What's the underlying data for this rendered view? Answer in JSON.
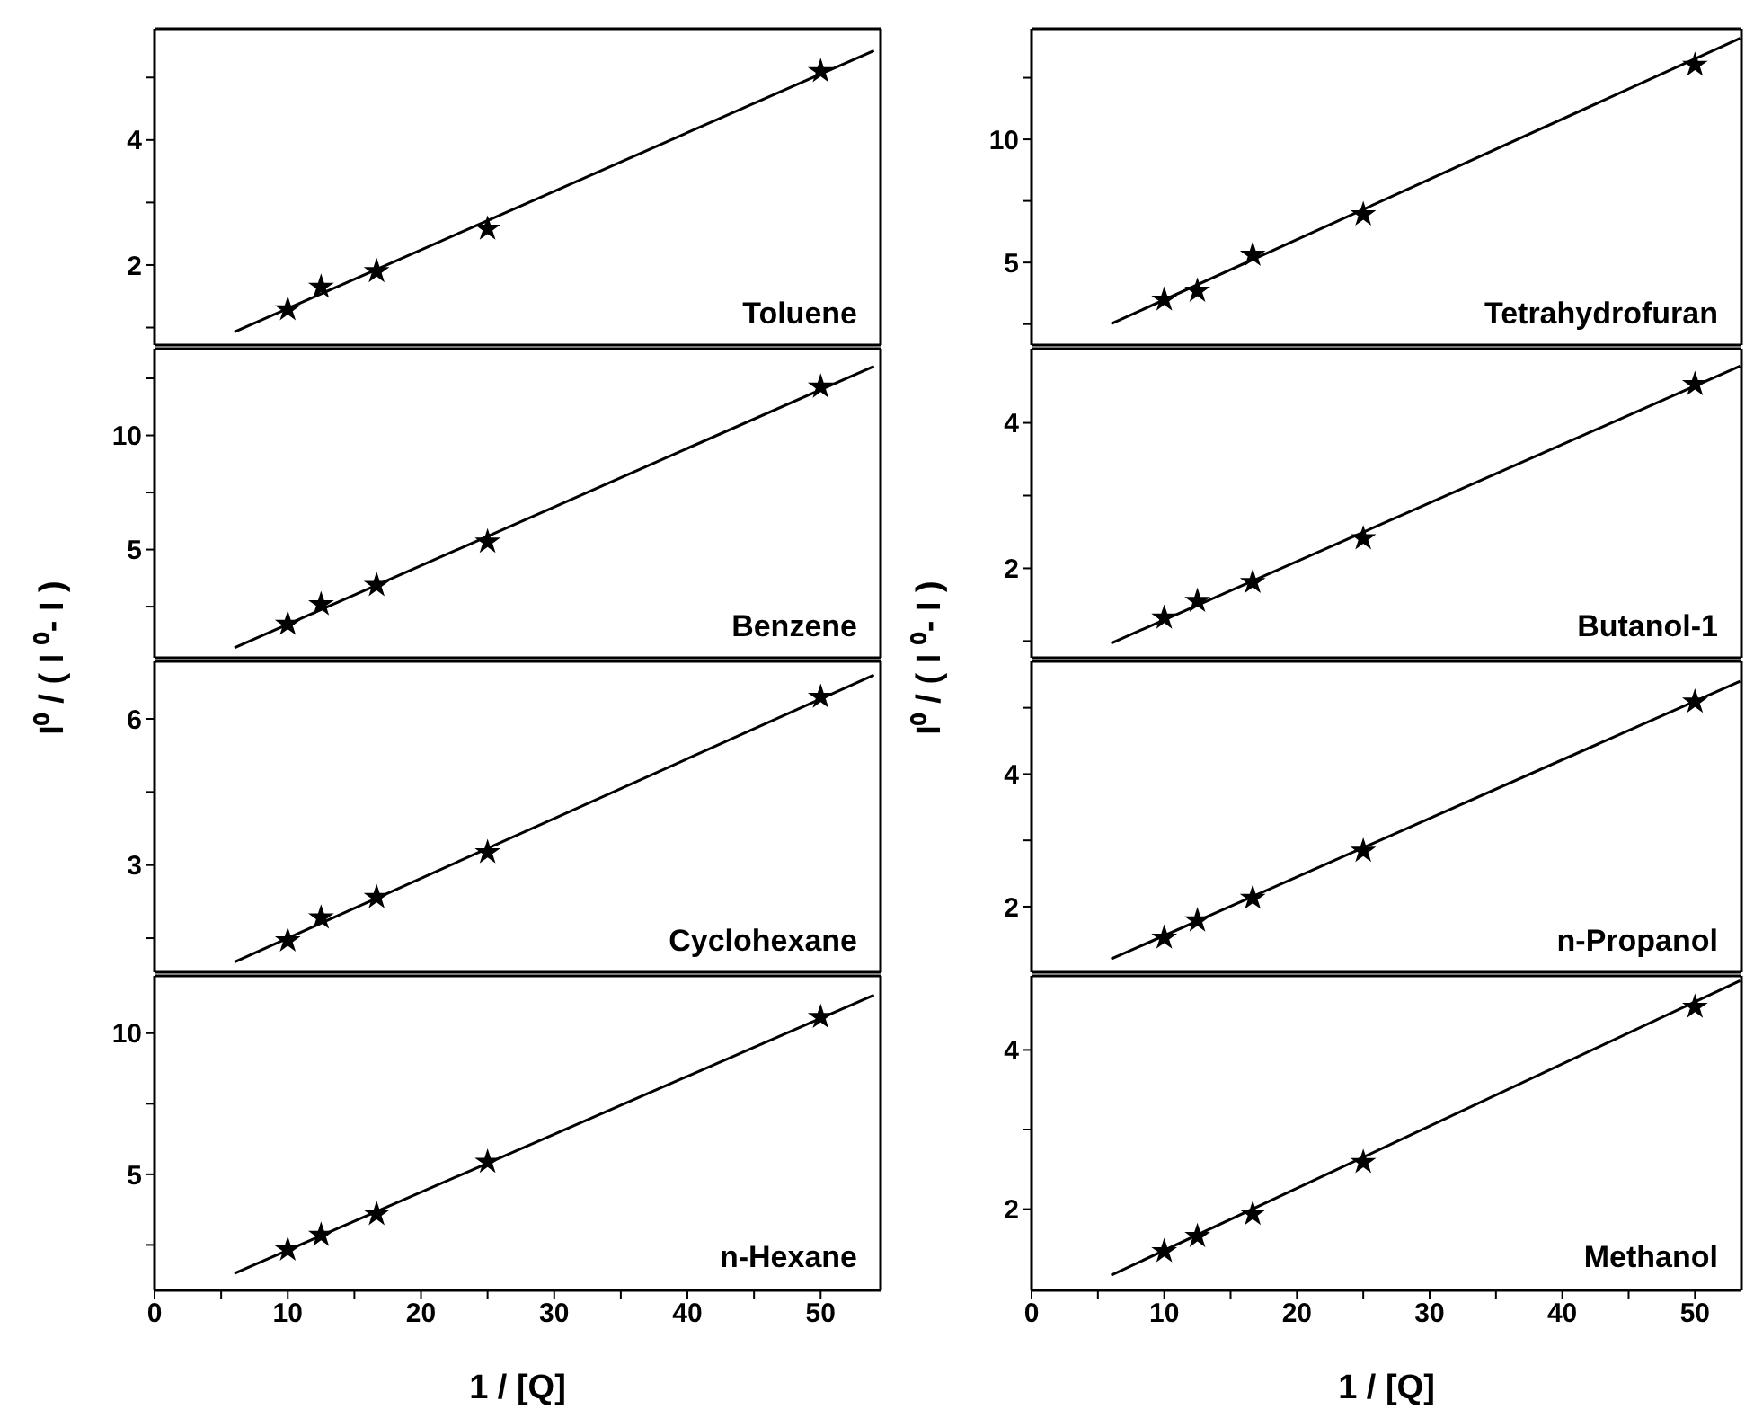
{
  "chart_data": [
    {
      "type": "scatter",
      "xlim": [
        0,
        54.5
      ],
      "ylim": [
        0.72,
        5.78
      ],
      "yticks": [
        {
          "value": 1,
          "label": null
        },
        2,
        {
          "value": 3,
          "label": null
        },
        4,
        {
          "value": 5,
          "label": null
        }
      ],
      "tick_labels": "y",
      "annotations": [
        "Toluene"
      ],
      "series": [
        {
          "type": "scatter",
          "marker": "star",
          "color": "#000000",
          "x": [
            10,
            12.5,
            16.67,
            25,
            50
          ],
          "values": [
            1.29,
            1.65,
            1.9,
            2.58,
            5.1
          ]
        },
        {
          "type": "line",
          "color": "#000000",
          "x": [
            6,
            54
          ],
          "values": [
            0.93,
            5.43
          ]
        }
      ]
    },
    {
      "type": "scatter",
      "xlim": [
        0,
        54.5
      ],
      "ylim": [
        0.26,
        13.8
      ],
      "yticks": [
        {
          "value": 2.5,
          "label": null
        },
        5,
        {
          "value": 7.5,
          "label": null
        },
        10,
        {
          "value": 12.5,
          "label": null
        }
      ],
      "tick_labels": "y",
      "ylabel": "I⁰ / ( I ⁰- I )",
      "annotations": [
        "Benzene"
      ],
      "series": [
        {
          "type": "scatter",
          "marker": "star",
          "color": "#000000",
          "x": [
            10,
            12.5,
            16.67,
            25,
            50
          ],
          "values": [
            1.74,
            2.6,
            3.44,
            5.34,
            12.13
          ]
        },
        {
          "type": "line",
          "color": "#000000",
          "x": [
            6,
            54
          ],
          "values": [
            0.7,
            13.03
          ]
        }
      ]
    },
    {
      "type": "scatter",
      "xlim": [
        0,
        54.5
      ],
      "ylim": [
        0.8,
        7.18
      ],
      "yticks": [
        {
          "value": 1.5,
          "label": null
        },
        3,
        {
          "value": 4.5,
          "label": null
        },
        6
      ],
      "tick_labels": "y",
      "annotations": [
        "Cyclohexane"
      ],
      "series": [
        {
          "type": "scatter",
          "marker": "star",
          "color": "#000000",
          "x": [
            10,
            12.5,
            16.67,
            25,
            50
          ],
          "values": [
            1.45,
            1.92,
            2.34,
            3.26,
            6.45
          ]
        },
        {
          "type": "line",
          "color": "#000000",
          "x": [
            6,
            54
          ],
          "values": [
            1.01,
            6.9
          ]
        }
      ]
    },
    {
      "type": "scatter",
      "xlim": [
        0,
        54.5
      ],
      "ylim": [
        0.89,
        12.03
      ],
      "xticks": [
        0,
        {
          "value": 5,
          "label": null
        },
        10,
        {
          "value": 15,
          "label": null
        },
        20,
        {
          "value": 25,
          "label": null
        },
        30,
        {
          "value": 35,
          "label": null
        },
        40,
        {
          "value": 45,
          "label": null
        },
        50
      ],
      "yticks": [
        {
          "value": 2.5,
          "label": null
        },
        5,
        {
          "value": 7.5,
          "label": null
        },
        10
      ],
      "xlabel": "1 / [Q]",
      "annotations": [
        "n-Hexane"
      ],
      "series": [
        {
          "type": "scatter",
          "marker": "star",
          "color": "#000000",
          "x": [
            10,
            12.5,
            16.67,
            25,
            50
          ],
          "values": [
            2.33,
            2.85,
            3.59,
            5.44,
            10.57
          ]
        },
        {
          "type": "line",
          "color": "#000000",
          "x": [
            6,
            54
          ],
          "values": [
            1.49,
            11.35
          ]
        }
      ]
    },
    {
      "type": "scatter",
      "xlim": [
        0,
        53.5
      ],
      "ylim": [
        1.65,
        14.49
      ],
      "yticks": [
        {
          "value": 2.5,
          "label": null
        },
        5,
        {
          "value": 7.5,
          "label": null
        },
        10,
        {
          "value": 12.5,
          "label": null
        }
      ],
      "tick_labels": "y",
      "annotations": [
        "Tetrahydrofuran"
      ],
      "series": [
        {
          "type": "scatter",
          "marker": "star",
          "color": "#000000",
          "x": [
            10,
            12.5,
            16.67,
            25,
            50
          ],
          "values": [
            3.49,
            3.85,
            5.31,
            6.95,
            13.02
          ]
        },
        {
          "type": "line",
          "color": "#000000",
          "x": [
            6,
            53.4
          ],
          "values": [
            2.51,
            14.1
          ]
        }
      ]
    },
    {
      "type": "scatter",
      "xlim": [
        0,
        53.5
      ],
      "ylim": [
        0.77,
        5.02
      ],
      "yticks": [
        {
          "value": 1,
          "label": null
        },
        2,
        {
          "value": 3,
          "label": null
        },
        4
      ],
      "tick_labels": "y",
      "ylabel": "I⁰ / ( I ⁰- I )",
      "annotations": [
        "Butanol-1"
      ],
      "series": [
        {
          "type": "scatter",
          "marker": "star",
          "color": "#000000",
          "x": [
            10,
            12.5,
            16.67,
            25,
            50
          ],
          "values": [
            1.32,
            1.55,
            1.81,
            2.41,
            4.53
          ]
        },
        {
          "type": "line",
          "color": "#000000",
          "x": [
            6,
            53.4
          ],
          "values": [
            0.97,
            4.78
          ]
        }
      ]
    },
    {
      "type": "scatter",
      "xlim": [
        0,
        53.5
      ],
      "ylim": [
        1.01,
        5.7
      ],
      "yticks": [
        2,
        {
          "value": 3,
          "label": null
        },
        4,
        {
          "value": 5,
          "label": null
        }
      ],
      "tick_labels": "y",
      "annotations": [
        "n-Propanol"
      ],
      "series": [
        {
          "type": "scatter",
          "marker": "star",
          "color": "#000000",
          "x": [
            10,
            12.5,
            16.67,
            25,
            50
          ],
          "values": [
            1.53,
            1.79,
            2.13,
            2.84,
            5.09
          ]
        },
        {
          "type": "line",
          "color": "#000000",
          "x": [
            6,
            53.4
          ],
          "values": [
            1.21,
            5.4
          ]
        }
      ]
    },
    {
      "type": "scatter",
      "xlim": [
        0,
        53.5
      ],
      "ylim": [
        0.98,
        4.93
      ],
      "xticks": [
        0,
        {
          "value": 5,
          "label": null
        },
        10,
        {
          "value": 15,
          "label": null
        },
        20,
        {
          "value": 25,
          "label": null
        },
        30,
        {
          "value": 35,
          "label": null
        },
        40,
        {
          "value": 45,
          "label": null
        },
        50
      ],
      "yticks": [
        2,
        {
          "value": 3,
          "label": null
        },
        4
      ],
      "xlabel": "1 / [Q]",
      "annotations": [
        "Methanol"
      ],
      "series": [
        {
          "type": "scatter",
          "marker": "star",
          "color": "#000000",
          "x": [
            10,
            12.5,
            16.67,
            25,
            50
          ],
          "values": [
            1.47,
            1.66,
            1.94,
            2.59,
            4.54
          ]
        },
        {
          "type": "line",
          "color": "#000000",
          "x": [
            6,
            53.4
          ],
          "values": [
            1.17,
            4.87
          ]
        }
      ]
    }
  ]
}
